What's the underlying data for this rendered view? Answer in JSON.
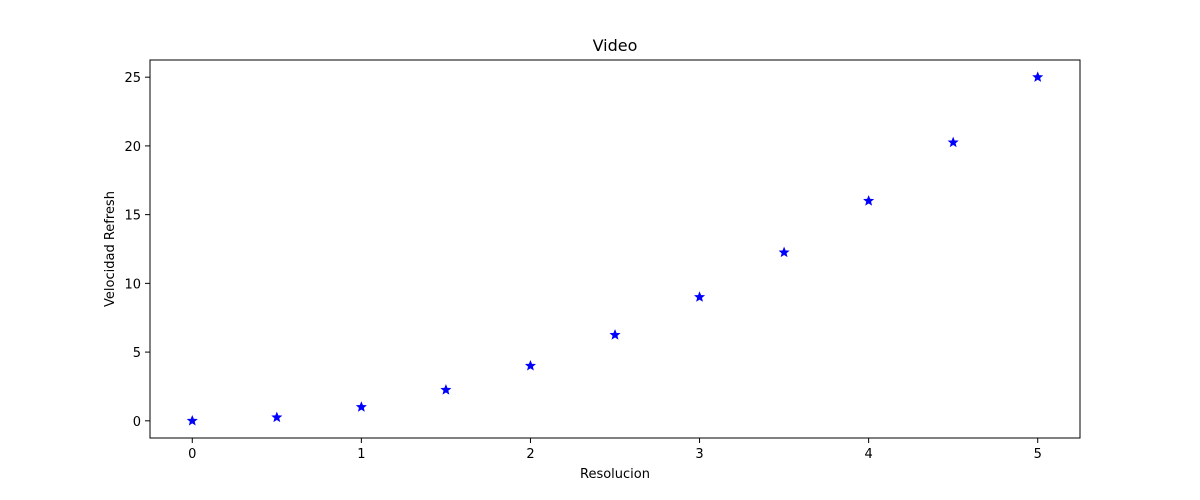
{
  "chart_data": {
    "type": "scatter",
    "title": "Video",
    "xlabel": "Resolucion",
    "ylabel": "Velocidad Refresh",
    "xlim": [
      -0.25,
      5.25
    ],
    "ylim": [
      -1.25,
      26.25
    ],
    "xticks": [
      0,
      1,
      2,
      3,
      4,
      5
    ],
    "yticks": [
      0,
      5,
      10,
      15,
      20,
      25
    ],
    "grid": false,
    "marker": "star",
    "marker_color": "#0000ff",
    "series": [
      {
        "x": [
          0,
          0.5,
          1,
          1.5,
          2,
          2.5,
          3,
          3.5,
          4,
          4.5,
          5
        ],
        "y": [
          0,
          0.25,
          1,
          2.25,
          4,
          6.25,
          9,
          12.25,
          16,
          20.25,
          25
        ]
      }
    ]
  }
}
